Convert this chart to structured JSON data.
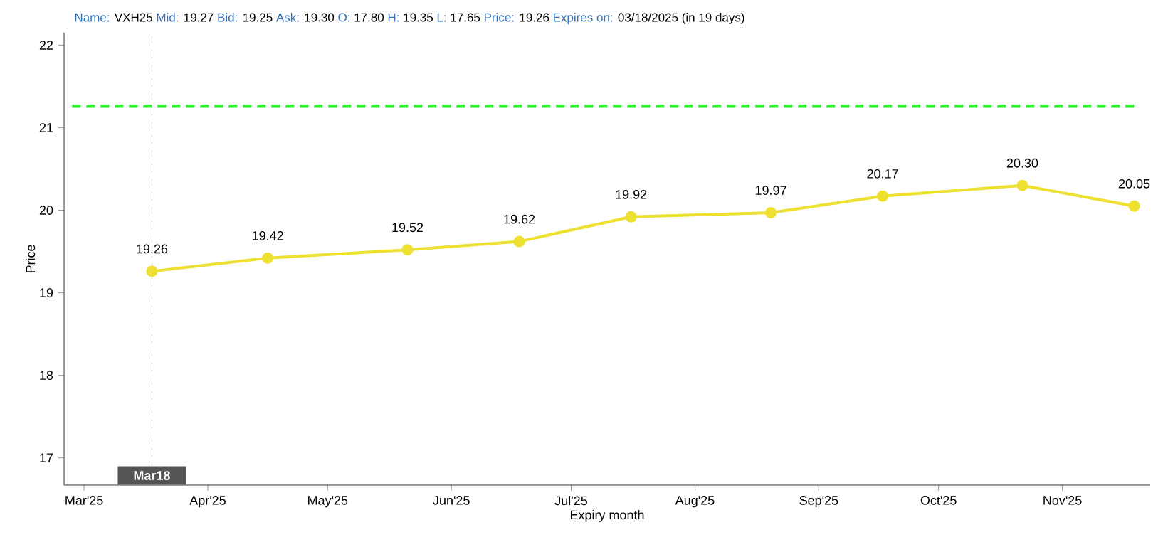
{
  "chart_data": {
    "type": "line",
    "annotations": [
      "Name:",
      "VXH25",
      "Mid:",
      "19.27",
      "Bid:",
      "19.25",
      "Ask:",
      "19.30",
      "O:",
      "17.80",
      "H:",
      "19.35",
      "L:",
      "17.65",
      "Price:",
      "19.26",
      "Expires on:",
      "03/18/2025 (in 19 days)"
    ],
    "xlabel": "Expiry month",
    "ylabel": "Price",
    "series": [
      {
        "color": "#ede030",
        "x": [
          "2025-03-18",
          "2025-04-16",
          "2025-05-21",
          "2025-06-18",
          "2025-07-16",
          "2025-08-20",
          "2025-09-17",
          "2025-10-22",
          "2025-11-19"
        ],
        "values": [
          19.26,
          19.42,
          19.52,
          19.62,
          19.92,
          19.97,
          20.17,
          20.3,
          20.05
        ],
        "value_labels": [
          "19.26",
          "19.42",
          "19.52",
          "19.62",
          "19.92",
          "19.97",
          "20.17",
          "20.30",
          "20.05"
        ]
      }
    ],
    "xlim": [
      "2025-02-24",
      "2025-11-23"
    ],
    "ylim": [
      16.67,
      22.15
    ],
    "xticks": [
      {
        "value": "2025-03-01",
        "label": "Mar'25"
      },
      {
        "value": "2025-04-01",
        "label": "Apr'25"
      },
      {
        "value": "2025-05-01",
        "label": "May'25"
      },
      {
        "value": "2025-06-01",
        "label": "Jun'25"
      },
      {
        "value": "2025-07-01",
        "label": "Jul'25"
      },
      {
        "value": "2025-08-01",
        "label": "Aug'25"
      },
      {
        "value": "2025-09-01",
        "label": "Sep'25"
      },
      {
        "value": "2025-10-01",
        "label": "Oct'25"
      },
      {
        "value": "2025-11-01",
        "label": "Nov'25"
      }
    ],
    "yticks": [
      17,
      18,
      19,
      20,
      21,
      22
    ],
    "ref_lines": [
      {
        "axis": "x",
        "value": "2025-03-18",
        "label": "Mar18",
        "color": "#c8c8c8",
        "line_style": "dashed"
      },
      {
        "axis": "y",
        "value": 21.26,
        "color": "#33ee33",
        "line_style": "dashed"
      }
    ],
    "marker": "circle",
    "line_style": "solid"
  }
}
